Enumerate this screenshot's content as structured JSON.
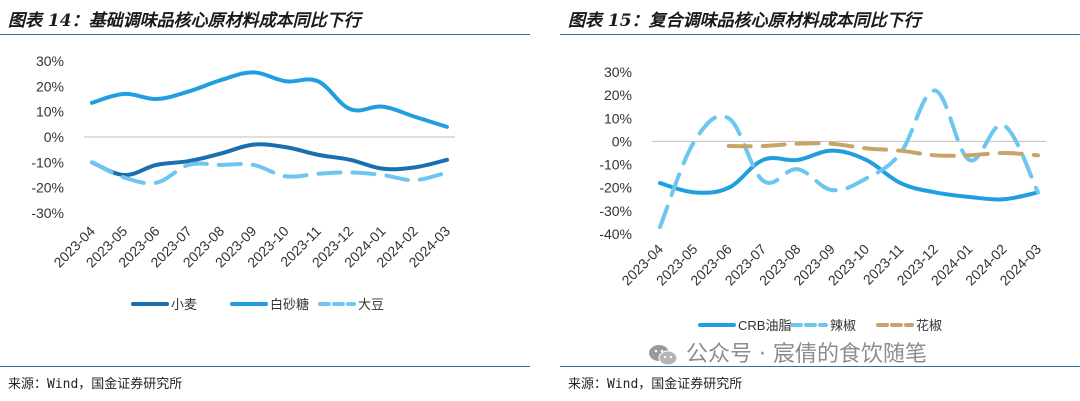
{
  "colors": {
    "title_rule": "#2f6fa8",
    "dark_blue": "#1a6fb0",
    "mid_blue": "#1f9fe0",
    "light_blue": "#6cc6f0",
    "tan": "#c8a46a"
  },
  "left": {
    "title": "图表 14：基础调味品核心原材料成本同比下行",
    "source": "来源：Wind，国金证券研究所"
  },
  "right": {
    "title": "图表 15：复合调味品核心原材料成本同比下行",
    "source": "来源：Wind，国金证券研究所"
  },
  "watermark": {
    "text": "公众号 · 宸倩的食饮随笔",
    "icon": "wechat-icon"
  },
  "chart_data": [
    {
      "type": "line",
      "title": "",
      "categories": [
        "2023-04",
        "2023-05",
        "2023-06",
        "2023-07",
        "2023-08",
        "2023-09",
        "2023-10",
        "2023-11",
        "2023-12",
        "2024-01",
        "2024-02",
        "2024-03"
      ],
      "ylim": [
        -30,
        30
      ],
      "yticks": [
        "-30%",
        "-20%",
        "-10%",
        "0%",
        "10%",
        "20%",
        "30%"
      ],
      "y_tick_values": [
        -30,
        -20,
        -10,
        0,
        10,
        20,
        30
      ],
      "grid": false,
      "legend_position": "bottom",
      "series": [
        {
          "name": "小麦",
          "style": "solid",
          "color": "#1a6fb0",
          "values": [
            -10,
            -15,
            -11,
            -9.5,
            -6.5,
            -3,
            -4,
            -7,
            -9,
            -12.5,
            -12,
            -9
          ]
        },
        {
          "name": "白砂糖",
          "style": "solid",
          "color": "#1f9fe0",
          "values": [
            13.5,
            17,
            15,
            18,
            22.5,
            25.5,
            22,
            22,
            11,
            12,
            8,
            4
          ]
        },
        {
          "name": "大豆",
          "style": "dashed",
          "color": "#6cc6f0",
          "values": [
            -10,
            -16,
            -18,
            -11,
            -11,
            -11,
            -15.5,
            -14.5,
            -14,
            -15,
            -17,
            -14
          ]
        }
      ]
    },
    {
      "type": "line",
      "title": "",
      "categories": [
        "2023-04",
        "2023-05",
        "2023-06",
        "2023-07",
        "2023-08",
        "2023-09",
        "2023-10",
        "2023-11",
        "2023-12",
        "2024-01",
        "2024-02",
        "2024-03"
      ],
      "ylim": [
        -40,
        30
      ],
      "yticks": [
        "-40%",
        "-30%",
        "-20%",
        "-10%",
        "0%",
        "10%",
        "20%",
        "30%"
      ],
      "y_tick_values": [
        -40,
        -30,
        -20,
        -10,
        0,
        10,
        20,
        30
      ],
      "grid": false,
      "legend_position": "bottom",
      "series": [
        {
          "name": "CRB油脂",
          "style": "solid",
          "color": "#1f9fe0",
          "values": [
            -18,
            -22,
            -20,
            -8,
            -8,
            -4,
            -8,
            -18,
            -22,
            -24,
            -25,
            -22
          ]
        },
        {
          "name": "辣椒",
          "style": "dashed",
          "color": "#6cc6f0",
          "values": [
            -37,
            0,
            10,
            -17,
            -12,
            -21,
            -16,
            -5,
            22,
            -8,
            7,
            -22
          ]
        },
        {
          "name": "花椒",
          "style": "dashed",
          "color": "#c8a46a",
          "values": [
            null,
            null,
            -2,
            -2,
            -1,
            -1,
            -3,
            -4,
            -6,
            -6,
            -5,
            -6
          ]
        }
      ]
    }
  ]
}
